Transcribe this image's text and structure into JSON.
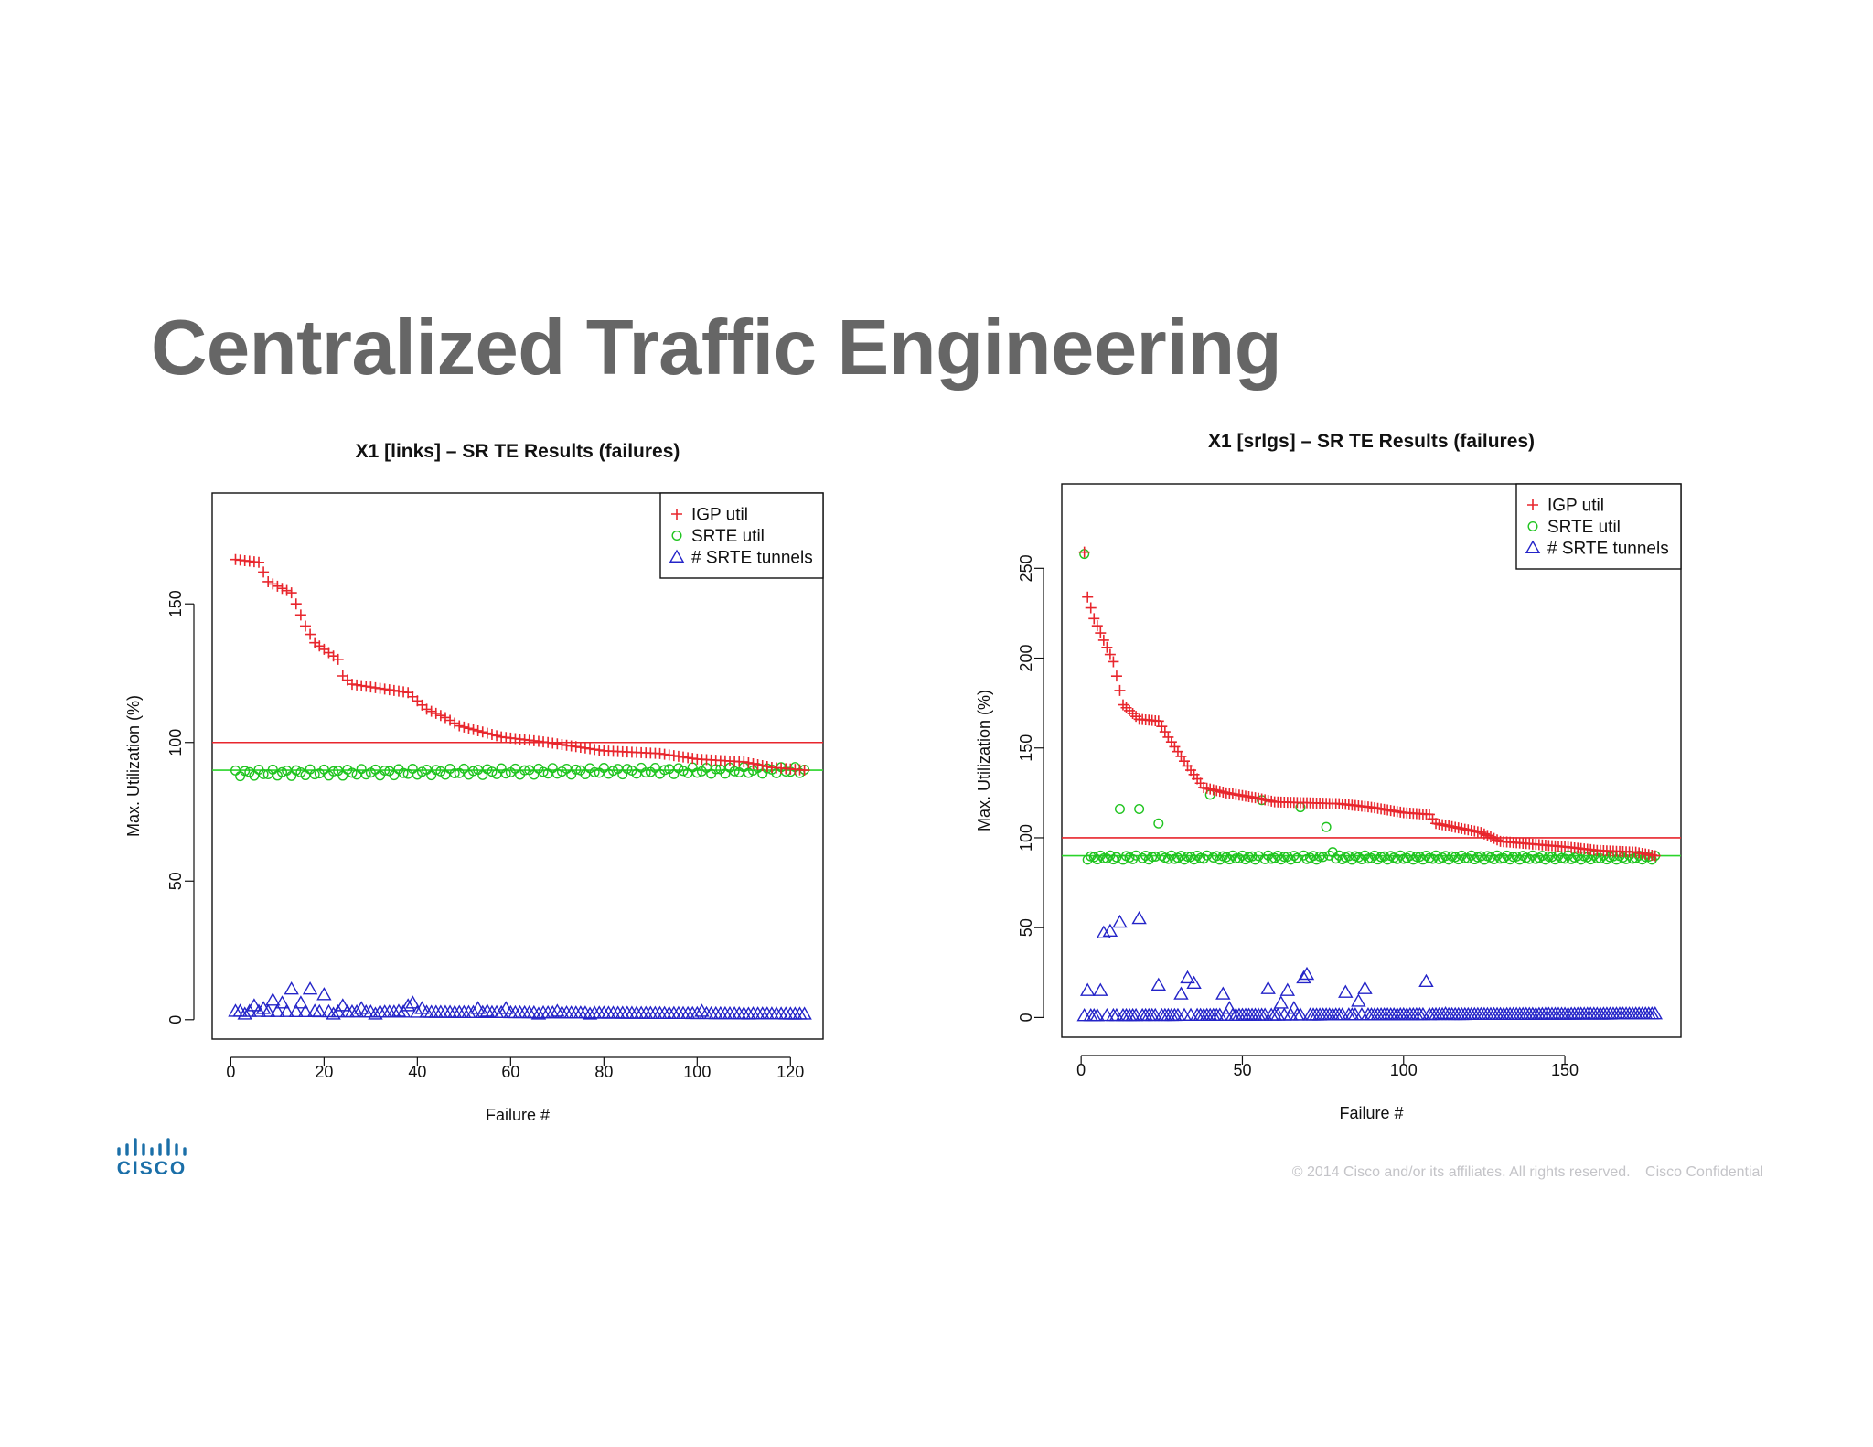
{
  "slide": {
    "title": "Centralized Traffic Engineering"
  },
  "footer": {
    "copyright": "© 2014  Cisco and/or its affiliates. All rights reserved.",
    "confidential": "Cisco Confidential"
  },
  "logo": {
    "text": "CISCO",
    "color": "#1b6fa8"
  },
  "colors": {
    "igp": "#e8262d",
    "srte": "#1fc41f",
    "tunnels": "#2424c8",
    "igp_line": "#e8262d",
    "srte_line": "#2ad42a"
  },
  "chart_data": [
    {
      "type": "scatter",
      "title": "X1 [links] – SR TE Results (failures)",
      "xlabel": "Failure #",
      "ylabel": "Max. Utilization (%)",
      "xlim": [
        -4,
        127
      ],
      "ylim": [
        -7,
        190
      ],
      "xticks": [
        0,
        20,
        40,
        60,
        80,
        100,
        120
      ],
      "yticks": [
        0,
        50,
        100,
        150
      ],
      "legend": {
        "position": "top-right",
        "entries": [
          "IGP util",
          "SRTE util",
          "# SRTE tunnels"
        ]
      },
      "hlines": [
        {
          "value": 100,
          "color": "red"
        },
        {
          "value": 90,
          "color": "green"
        }
      ],
      "n": 123,
      "series": [
        {
          "name": "IGP util",
          "marker": "plus",
          "knots": [
            [
              1,
              166
            ],
            [
              6,
              165
            ],
            [
              8,
              158
            ],
            [
              13,
              154
            ],
            [
              16,
              142
            ],
            [
              18,
              136
            ],
            [
              23,
              130
            ],
            [
              24,
              124
            ],
            [
              26,
              121
            ],
            [
              38,
              118
            ],
            [
              42,
              112
            ],
            [
              46,
              109
            ],
            [
              49,
              106
            ],
            [
              58,
              102
            ],
            [
              68,
              100
            ],
            [
              80,
              97
            ],
            [
              92,
              96
            ],
            [
              100,
              94
            ],
            [
              110,
              93
            ],
            [
              116,
              91
            ],
            [
              123,
              90
            ]
          ]
        },
        {
          "name": "SRTE util",
          "marker": "circle",
          "knots": [
            [
              1,
              89
            ],
            [
              123,
              90
            ]
          ],
          "jitter": 1.2
        },
        {
          "name": "# SRTE tunnels",
          "marker": "triangle",
          "knots": [
            [
              1,
              3
            ],
            [
              123,
              2
            ]
          ],
          "specials": [
            [
              3,
              2
            ],
            [
              5,
              5
            ],
            [
              7,
              4
            ],
            [
              9,
              7
            ],
            [
              11,
              6
            ],
            [
              13,
              11
            ],
            [
              15,
              6
            ],
            [
              17,
              11
            ],
            [
              18,
              3
            ],
            [
              20,
              9
            ],
            [
              22,
              2
            ],
            [
              24,
              5
            ],
            [
              28,
              4
            ],
            [
              31,
              2
            ],
            [
              36,
              3
            ],
            [
              38,
              5
            ],
            [
              39,
              6
            ],
            [
              41,
              4
            ],
            [
              53,
              4
            ],
            [
              55,
              3
            ],
            [
              59,
              4
            ],
            [
              66,
              2
            ],
            [
              70,
              3
            ],
            [
              77,
              2
            ],
            [
              101,
              3
            ],
            [
              111,
              2
            ]
          ]
        }
      ]
    },
    {
      "type": "scatter",
      "title": "X1 [srlgs] – SR TE Results (failures)",
      "xlabel": "Failure #",
      "ylabel": "Max. Utilization (%)",
      "xlim": [
        -6,
        186
      ],
      "ylim": [
        -11,
        297
      ],
      "xticks": [
        0,
        50,
        100,
        150
      ],
      "yticks": [
        0,
        50,
        100,
        150,
        200,
        250
      ],
      "legend": {
        "position": "top-right",
        "entries": [
          "IGP util",
          "SRTE util",
          "# SRTE tunnels"
        ]
      },
      "hlines": [
        {
          "value": 100,
          "color": "red"
        },
        {
          "value": 90,
          "color": "green"
        }
      ],
      "n": 178,
      "series": [
        {
          "name": "IGP util",
          "marker": "plus",
          "knots": [
            [
              1,
              259
            ],
            [
              2,
              234
            ],
            [
              4,
              222
            ],
            [
              7,
              210
            ],
            [
              10,
              198
            ],
            [
              13,
              174
            ],
            [
              18,
              166
            ],
            [
              24,
              165
            ],
            [
              27,
              156
            ],
            [
              33,
              140
            ],
            [
              38,
              128
            ],
            [
              45,
              125
            ],
            [
              55,
              122
            ],
            [
              60,
              120
            ],
            [
              80,
              119
            ],
            [
              90,
              117
            ],
            [
              100,
              114
            ],
            [
              108,
              113
            ],
            [
              110,
              108
            ],
            [
              124,
              103
            ],
            [
              130,
              98
            ],
            [
              150,
              95
            ],
            [
              160,
              93
            ],
            [
              172,
              92
            ],
            [
              178,
              90
            ]
          ]
        },
        {
          "name": "SRTE util",
          "marker": "circle",
          "knots": [
            [
              1,
              89
            ],
            [
              178,
              89
            ]
          ],
          "jitter": 1.2,
          "specials": [
            [
              1,
              258
            ],
            [
              12,
              116
            ],
            [
              18,
              116
            ],
            [
              24,
              108
            ],
            [
              40,
              124
            ],
            [
              56,
              121
            ],
            [
              68,
              117
            ],
            [
              76,
              106
            ],
            [
              78,
              92
            ]
          ]
        },
        {
          "name": "# SRTE tunnels",
          "marker": "triangle",
          "knots": [
            [
              1,
              1
            ],
            [
              178,
              2
            ]
          ],
          "specials": [
            [
              1,
              1
            ],
            [
              2,
              15
            ],
            [
              6,
              15
            ],
            [
              7,
              47
            ],
            [
              9,
              48
            ],
            [
              12,
              53
            ],
            [
              18,
              55
            ],
            [
              24,
              18
            ],
            [
              31,
              13
            ],
            [
              33,
              22
            ],
            [
              35,
              19
            ],
            [
              44,
              13
            ],
            [
              46,
              5
            ],
            [
              58,
              16
            ],
            [
              62,
              8
            ],
            [
              64,
              15
            ],
            [
              66,
              5
            ],
            [
              69,
              22
            ],
            [
              70,
              24
            ],
            [
              82,
              14
            ],
            [
              86,
              9
            ],
            [
              88,
              16
            ],
            [
              107,
              20
            ],
            [
              113,
              2
            ]
          ]
        }
      ]
    }
  ]
}
